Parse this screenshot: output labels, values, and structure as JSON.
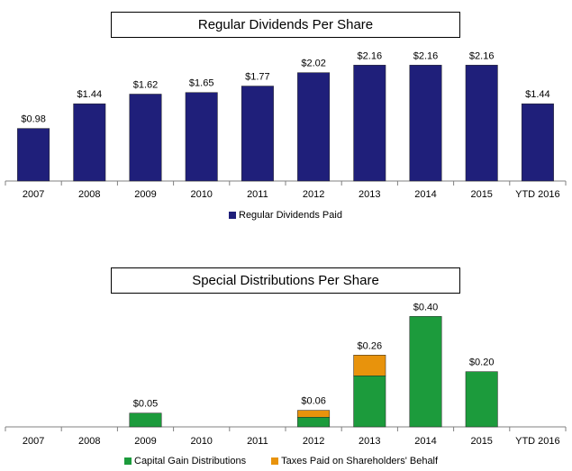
{
  "chart_data": [
    {
      "type": "bar",
      "title": "Regular Dividends Per Share",
      "categories": [
        "2007",
        "2008",
        "2009",
        "2010",
        "2011",
        "2012",
        "2013",
        "2014",
        "2015",
        "YTD 2016"
      ],
      "series": [
        {
          "name": "Regular Dividends Paid",
          "color": "#1f1f7a",
          "values": [
            0.98,
            1.44,
            1.62,
            1.65,
            1.77,
            2.02,
            2.16,
            2.16,
            2.16,
            1.44
          ]
        }
      ],
      "labels": [
        "$0.98",
        "$1.44",
        "$1.62",
        "$1.65",
        "$1.77",
        "$2.02",
        "$2.16",
        "$2.16",
        "$2.16",
        "$1.44"
      ],
      "ylim": [
        0,
        2.35
      ],
      "xlabel": "",
      "ylabel": "",
      "legend": "bottom"
    },
    {
      "type": "bar",
      "stacked": true,
      "title": "Special Distributions Per Share",
      "categories": [
        "2007",
        "2008",
        "2009",
        "2010",
        "2011",
        "2012",
        "2013",
        "2014",
        "2015",
        "YTD 2016"
      ],
      "series": [
        {
          "name": "Capital Gain Distributions",
          "color": "#1c9b3c",
          "values": [
            0,
            0,
            0.05,
            0,
            0,
            0.035,
            0.185,
            0.4,
            0.2,
            0
          ]
        },
        {
          "name": "Taxes Paid on Shareholders' Behalf",
          "color": "#e8930c",
          "values": [
            0,
            0,
            0,
            0,
            0,
            0.025,
            0.075,
            0,
            0,
            0
          ]
        }
      ],
      "labels": [
        "",
        "",
        "$0.05",
        "",
        "",
        "$0.06",
        "$0.26",
        "$0.40",
        "$0.20",
        ""
      ],
      "ylim": [
        0,
        0.45
      ],
      "xlabel": "",
      "ylabel": "",
      "legend": "bottom"
    }
  ]
}
